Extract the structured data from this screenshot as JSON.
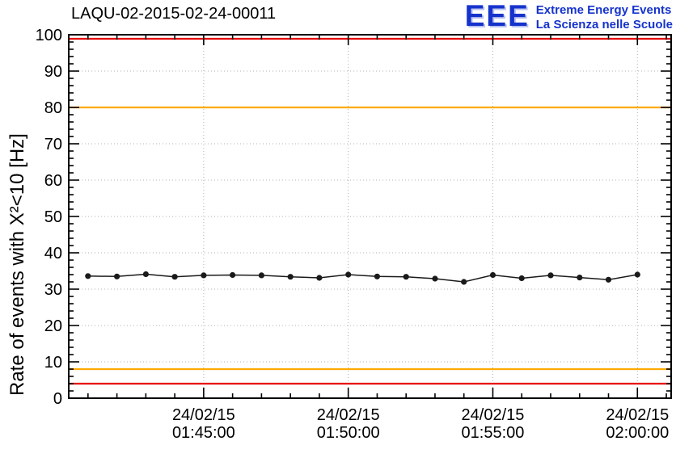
{
  "header": {
    "title": "LAQU-02-2015-02-24-00011",
    "logo": {
      "acronym": "EEE",
      "line1": "Extreme Energy Events",
      "line2": "La Scienza nelle Scuole",
      "color": "#1533cc"
    }
  },
  "chart_data": {
    "type": "line",
    "title": "LAQU-02-2015-02-24-00011",
    "xlabel": "",
    "ylabel": "Rate of events with X²<10 [Hz]",
    "ylim": [
      0,
      100
    ],
    "y_ticks": [
      0,
      10,
      20,
      30,
      40,
      50,
      60,
      70,
      80,
      90,
      100
    ],
    "y_minor_step": 2,
    "x_window": [
      "01:40:20",
      "02:01:10"
    ],
    "x_minor_step_seconds": 60,
    "x_tick_labels": [
      {
        "date": "24/02/15",
        "time": "01:45:00"
      },
      {
        "date": "24/02/15",
        "time": "01:50:00"
      },
      {
        "date": "24/02/15",
        "time": "01:55:00"
      },
      {
        "date": "24/02/15",
        "time": "02:00:00"
      }
    ],
    "grid": {
      "show": true,
      "color": "#b0b0b0"
    },
    "reference_lines": [
      {
        "y": 100,
        "color": "#e60000"
      },
      {
        "y": 80,
        "color": "#ffaa00"
      },
      {
        "y": 8,
        "color": "#ffaa00"
      },
      {
        "y": 4,
        "color": "#e60000"
      }
    ],
    "series": [
      {
        "name": "rate",
        "color": "#1a1a1a",
        "marker": "circle",
        "y_err": 0.5,
        "points": [
          {
            "t": "01:41:00",
            "y": 33.6
          },
          {
            "t": "01:42:00",
            "y": 33.5
          },
          {
            "t": "01:43:00",
            "y": 34.1
          },
          {
            "t": "01:44:00",
            "y": 33.4
          },
          {
            "t": "01:45:00",
            "y": 33.8
          },
          {
            "t": "01:46:00",
            "y": 33.9
          },
          {
            "t": "01:47:00",
            "y": 33.8
          },
          {
            "t": "01:48:00",
            "y": 33.4
          },
          {
            "t": "01:49:00",
            "y": 33.1
          },
          {
            "t": "01:50:00",
            "y": 34.0
          },
          {
            "t": "01:51:00",
            "y": 33.5
          },
          {
            "t": "01:52:00",
            "y": 33.4
          },
          {
            "t": "01:53:00",
            "y": 32.9
          },
          {
            "t": "01:54:00",
            "y": 32.0
          },
          {
            "t": "01:55:00",
            "y": 33.9
          },
          {
            "t": "01:56:00",
            "y": 33.0
          },
          {
            "t": "01:57:00",
            "y": 33.8
          },
          {
            "t": "01:58:00",
            "y": 33.2
          },
          {
            "t": "01:59:00",
            "y": 32.6
          },
          {
            "t": "02:00:00",
            "y": 34.0
          }
        ]
      }
    ]
  }
}
